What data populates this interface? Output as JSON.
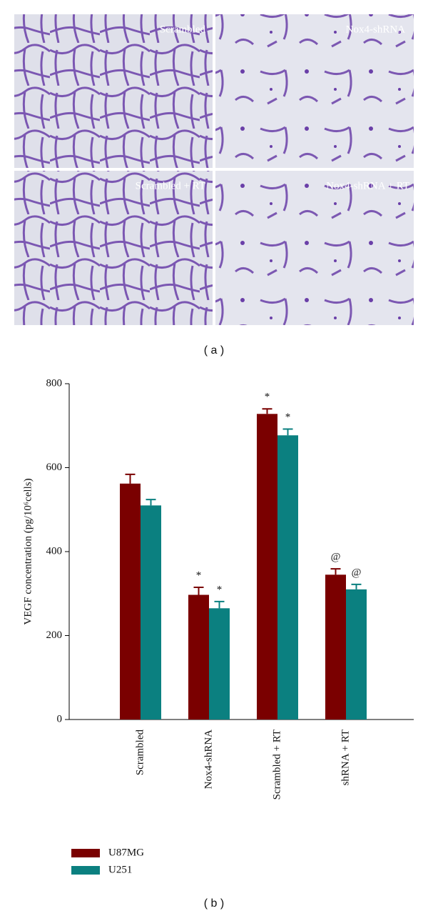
{
  "panel_a": {
    "images": [
      {
        "label": "Scrambled"
      },
      {
        "label": "Nox4-shRNA"
      },
      {
        "label": "Scrambled + RT"
      },
      {
        "label": "Nox4-shRNA + RT"
      }
    ],
    "caption": "( a )"
  },
  "chart_data": {
    "type": "bar",
    "y_label": "VEGF concentration (pg/10⁶cells)",
    "categories": [
      "Scrambled",
      "Nox4-shRNA",
      "Scrambled + RT",
      "shRNA + RT"
    ],
    "series": [
      {
        "name": "U87MG",
        "color": "#7a0000",
        "values": [
          562,
          297,
          728,
          345
        ],
        "errors": [
          22,
          18,
          12,
          14
        ]
      },
      {
        "name": "U251",
        "color": "#0b8080",
        "values": [
          510,
          265,
          677,
          310
        ],
        "errors": [
          14,
          16,
          15,
          12
        ]
      }
    ],
    "annotations": [
      {
        "series": 0,
        "category": 1,
        "text": "*"
      },
      {
        "series": 1,
        "category": 1,
        "text": "*"
      },
      {
        "series": 0,
        "category": 2,
        "text": "*"
      },
      {
        "series": 1,
        "category": 2,
        "text": "*"
      },
      {
        "series": 0,
        "category": 3,
        "text": "@"
      },
      {
        "series": 1,
        "category": 3,
        "text": "@"
      }
    ],
    "ylim": [
      0,
      800
    ],
    "yticks": [
      0,
      200,
      400,
      600,
      800
    ],
    "grid": false,
    "caption": "( b )"
  }
}
